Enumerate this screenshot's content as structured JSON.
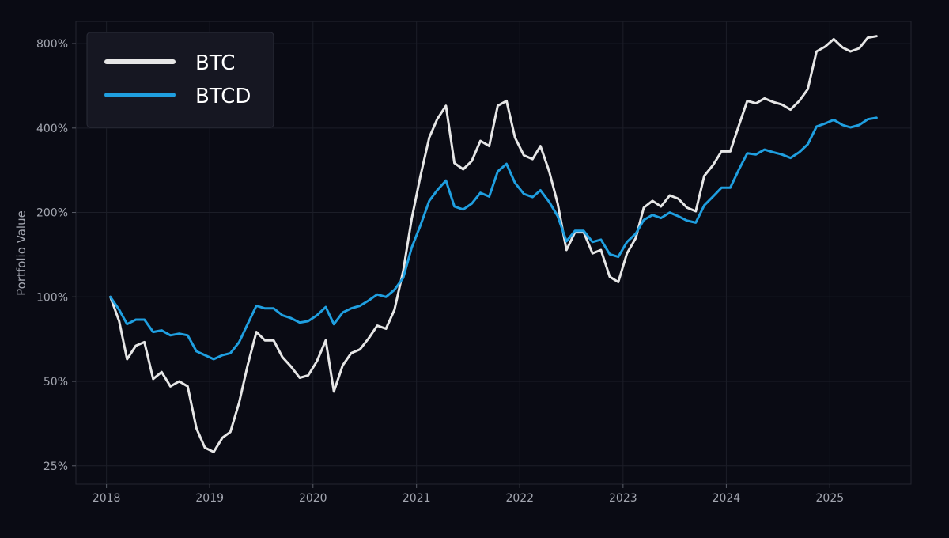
{
  "chart_data": {
    "type": "line",
    "title": "",
    "xlabel": "",
    "ylabel": "Portfolio Value",
    "yscale": "log",
    "ylim": [
      21.5,
      960
    ],
    "xlim": [
      "2017-09-15",
      "2025-10-15"
    ],
    "grid": true,
    "legend_position": "top-left",
    "background_color": "#0a0b14",
    "y_ticks": [
      {
        "value": 25,
        "label": "25%"
      },
      {
        "value": 50,
        "label": "50%"
      },
      {
        "value": 100,
        "label": "100%"
      },
      {
        "value": 200,
        "label": "200%"
      },
      {
        "value": 400,
        "label": "400%"
      },
      {
        "value": 800,
        "label": "800%"
      }
    ],
    "x_ticks": [
      {
        "value": "2018-01-01",
        "label": "2018"
      },
      {
        "value": "2019-01-01",
        "label": "2019"
      },
      {
        "value": "2020-01-01",
        "label": "2020"
      },
      {
        "value": "2021-01-01",
        "label": "2021"
      },
      {
        "value": "2022-01-01",
        "label": "2022"
      },
      {
        "value": "2023-01-01",
        "label": "2023"
      },
      {
        "value": "2024-01-01",
        "label": "2024"
      },
      {
        "value": "2025-01-01",
        "label": "2025"
      }
    ],
    "x": [
      "2018-01",
      "2018-02",
      "2018-03",
      "2018-04",
      "2018-05",
      "2018-06",
      "2018-07",
      "2018-08",
      "2018-09",
      "2018-10",
      "2018-11",
      "2018-12",
      "2019-01",
      "2019-02",
      "2019-03",
      "2019-04",
      "2019-05",
      "2019-06",
      "2019-07",
      "2019-08",
      "2019-09",
      "2019-10",
      "2019-11",
      "2019-12",
      "2020-01",
      "2020-02",
      "2020-03",
      "2020-04",
      "2020-05",
      "2020-06",
      "2020-07",
      "2020-08",
      "2020-09",
      "2020-10",
      "2020-11",
      "2020-12",
      "2021-01",
      "2021-02",
      "2021-03",
      "2021-04",
      "2021-05",
      "2021-06",
      "2021-07",
      "2021-08",
      "2021-09",
      "2021-10",
      "2021-11",
      "2021-12",
      "2022-01",
      "2022-02",
      "2022-03",
      "2022-04",
      "2022-05",
      "2022-06",
      "2022-07",
      "2022-08",
      "2022-09",
      "2022-10",
      "2022-11",
      "2022-12",
      "2023-01",
      "2023-02",
      "2023-03",
      "2023-04",
      "2023-05",
      "2023-06",
      "2023-07",
      "2023-08",
      "2023-09",
      "2023-10",
      "2023-11",
      "2023-12",
      "2024-01",
      "2024-02",
      "2024-03",
      "2024-04",
      "2024-05",
      "2024-06",
      "2024-07",
      "2024-08",
      "2024-09",
      "2024-10",
      "2024-11",
      "2024-12",
      "2025-01",
      "2025-02",
      "2025-03",
      "2025-04",
      "2025-05",
      "2025-06"
    ],
    "series": [
      {
        "name": "BTC",
        "color": "#e6e6e6",
        "values": [
          100,
          82,
          60,
          67,
          69,
          51,
          54,
          48,
          50,
          48,
          34,
          29,
          28,
          31.5,
          33,
          42,
          57,
          75,
          70,
          70,
          61,
          56.5,
          51.5,
          52.5,
          59,
          70,
          46,
          57,
          63,
          65,
          71,
          79,
          77,
          90,
          124,
          190,
          270,
          370,
          430,
          480,
          300,
          285,
          305,
          360,
          345,
          480,
          500,
          370,
          320,
          310,
          345,
          280,
          215,
          147,
          170,
          170,
          143,
          147,
          118,
          113,
          143,
          162,
          208,
          220,
          210,
          230,
          224,
          208,
          202,
          270,
          295,
          330,
          330,
          410,
          500,
          490,
          510,
          495,
          485,
          465,
          500,
          550,
          750,
          780,
          830,
          775,
          750,
          770,
          840,
          850
        ]
      },
      {
        "name": "BTCD",
        "color": "#1f9fe0",
        "values": [
          100,
          90,
          80,
          83,
          83,
          75,
          76,
          73,
          74,
          73,
          64,
          62,
          60,
          62,
          63,
          69,
          80,
          93,
          91,
          91,
          86,
          84,
          81,
          82,
          86,
          92,
          80,
          88,
          91,
          93,
          97,
          102,
          100,
          106,
          117,
          150,
          180,
          220,
          240,
          260,
          210,
          205,
          215,
          235,
          228,
          280,
          298,
          255,
          233,
          227,
          240,
          218,
          194,
          158,
          172,
          172,
          157,
          160,
          142,
          139,
          157,
          168,
          188,
          196,
          191,
          200,
          194,
          187,
          184,
          212,
          228,
          245,
          245,
          285,
          325,
          322,
          335,
          328,
          322,
          313,
          328,
          350,
          405,
          415,
          428,
          410,
          402,
          410,
          430,
          435
        ]
      }
    ]
  }
}
